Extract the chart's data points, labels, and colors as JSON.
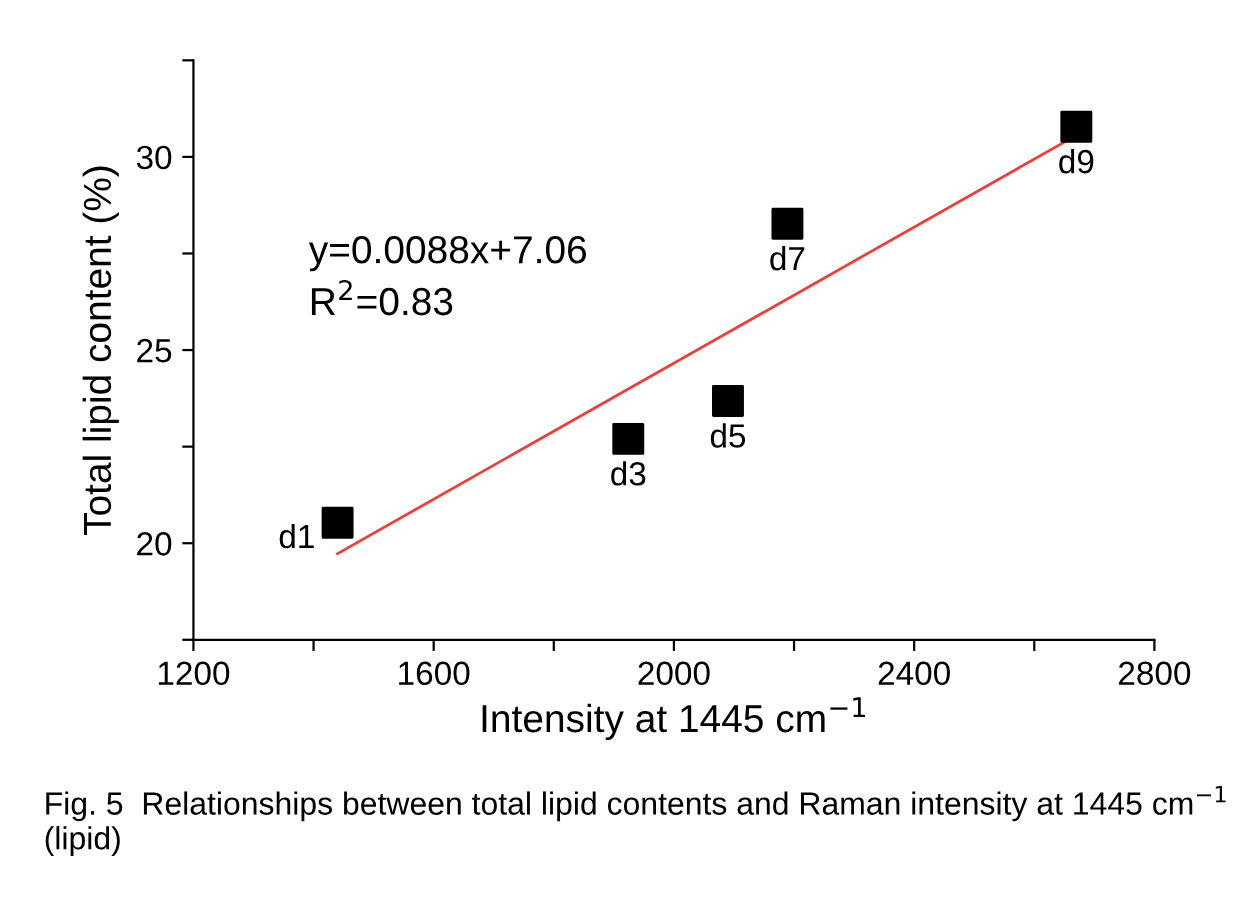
{
  "chart_data": {
    "type": "scatter",
    "xlabel": "Intensity at 1445 cm$^{−1}$",
    "ylabel": "Total lipid content (%)",
    "series": [
      {
        "color": "#000000",
        "marker": "square",
        "x": [
          1440,
          1924,
          2090,
          2189,
          2670
        ],
        "values": [
          20.53,
          22.7,
          23.68,
          28.27,
          30.78
        ]
      },
      {
        "type": "line",
        "color": "#e8413c",
        "marker": "none",
        "line_style": "solid",
        "x": [
          1440,
          2670
        ],
        "values": [
          19.73,
          30.56
        ]
      }
    ],
    "xlim": [
      1200,
      2800
    ],
    "xticks": [
      1200,
      {
        "value": 1400,
        "label": null
      },
      1600,
      {
        "value": 1800,
        "label": null
      },
      2000,
      {
        "value": 2200,
        "label": null
      },
      2400,
      {
        "value": 2600,
        "label": null
      },
      2800
    ],
    "ylim": [
      17.5,
      32.5
    ],
    "yticks": [
      {
        "value": 17.5,
        "label": null
      },
      20,
      {
        "value": 22.5,
        "label": null
      },
      25,
      {
        "value": 27.5,
        "label": null
      },
      30,
      {
        "value": 32.5,
        "label": null
      }
    ],
    "annotations": [
      {
        "text": "d1",
        "x": 1440,
        "y": 20.53
      },
      {
        "text": "d3",
        "x": 1924,
        "y": 22.7
      },
      {
        "text": "d5",
        "x": 2090,
        "y": 23.68
      },
      {
        "text": "d7",
        "x": 2189,
        "y": 28.27
      },
      {
        "text": "d9",
        "x": 2670,
        "y": 30.78
      },
      "y=0.0088x+7.06",
      "R$^{2}$=0.83",
      "Fig. 5  Relationships between total lipid contents and Raman intensity at 1445 cm$^{−1}$ (lipid)"
    ],
    "grid": false,
    "legend": false
  }
}
